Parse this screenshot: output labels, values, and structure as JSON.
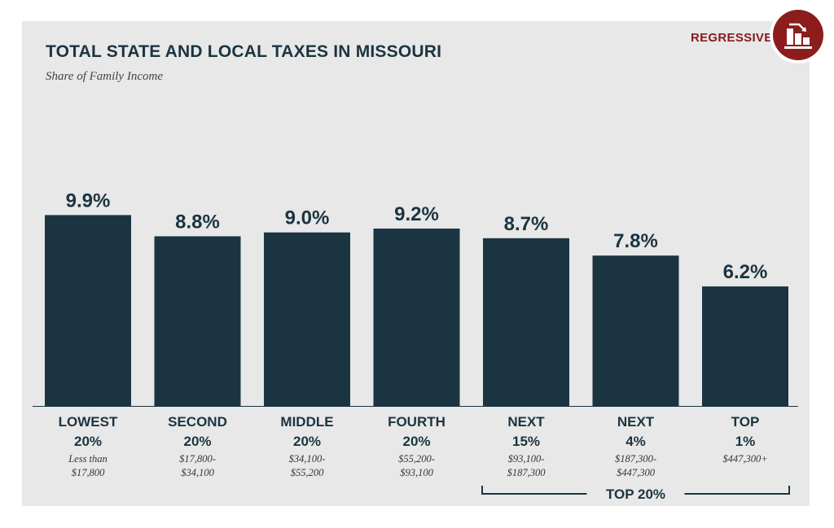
{
  "badge": {
    "label": "REGRESSIVE",
    "icon": "regressive-chart-icon",
    "color": "#8d1c1c"
  },
  "chart_data": {
    "type": "bar",
    "title": "TOTAL STATE AND LOCAL TAXES IN MISSOURI",
    "subtitle": "Share of Family Income",
    "categories": [
      [
        "LOWEST",
        "20%"
      ],
      [
        "SECOND",
        "20%"
      ],
      [
        "MIDDLE",
        "20%"
      ],
      [
        "FOURTH",
        "20%"
      ],
      [
        "NEXT",
        "15%"
      ],
      [
        "NEXT",
        "4%"
      ],
      [
        "TOP",
        "1%"
      ]
    ],
    "income_ranges": [
      [
        "Less than",
        "$17,800"
      ],
      [
        "$17,800-",
        "$34,100"
      ],
      [
        "$34,100-",
        "$55,200"
      ],
      [
        "$55,200-",
        "$93,100"
      ],
      [
        "$93,100-",
        "$187,300"
      ],
      [
        "$187,300-",
        "$447,300"
      ],
      [
        "$447,300+"
      ]
    ],
    "values": [
      9.9,
      8.8,
      9.0,
      9.2,
      8.7,
      7.8,
      6.2
    ],
    "value_labels": [
      "9.9%",
      "8.8%",
      "9.0%",
      "9.2%",
      "8.7%",
      "7.8%",
      "6.2%"
    ],
    "bar_color": "#1b3441",
    "group_label": {
      "text": "TOP 20%",
      "from_index": 4,
      "to_index": 6
    },
    "grid": false,
    "legend": "none"
  }
}
